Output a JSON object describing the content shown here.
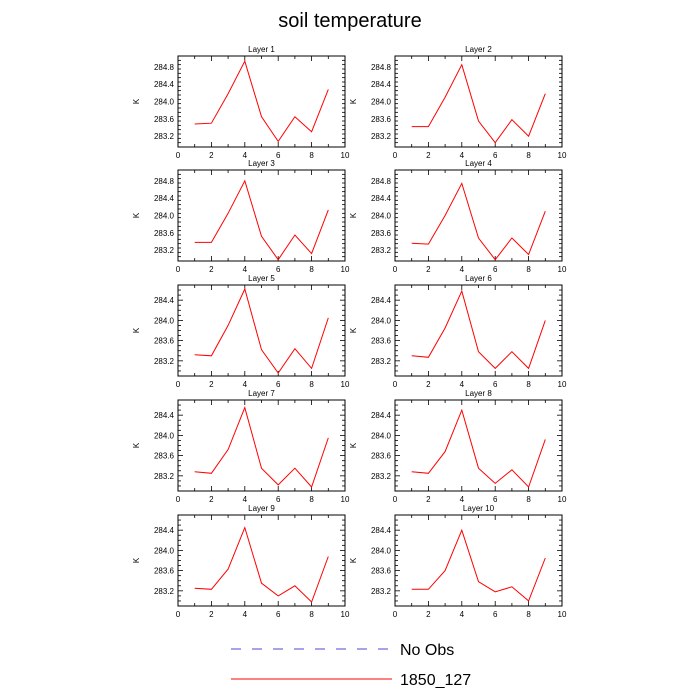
{
  "chart_data": {
    "type": "line",
    "title": "soil temperature",
    "x": [
      1,
      2,
      3,
      4,
      5,
      6,
      7,
      8,
      9
    ],
    "xlim": [
      0,
      10
    ],
    "xticks": [
      0,
      2,
      4,
      6,
      8,
      10
    ],
    "ylabel": "K",
    "legend": [
      {
        "name": "No Obs",
        "color": "#4a4acc",
        "style": "dashed"
      },
      {
        "name": "1850_127",
        "color": "#ff0000",
        "style": "solid"
      }
    ],
    "panels": [
      {
        "title": "Layer 1",
        "ylim": [
          282.95,
          285.05
        ],
        "yticks": [
          283.2,
          283.6,
          284.0,
          284.4,
          284.8
        ],
        "ytick_labels": [
          "283.2",
          "283.6",
          "284.0",
          "284.4",
          "284.8"
        ],
        "series": [
          {
            "name": "1850_127",
            "values": [
              283.48,
              283.5,
              284.18,
              284.93,
              283.65,
              283.08,
              283.65,
              283.3,
              284.28
            ]
          }
        ]
      },
      {
        "title": "Layer 2",
        "ylim": [
          282.95,
          285.05
        ],
        "yticks": [
          283.2,
          283.6,
          284.0,
          284.4,
          284.8
        ],
        "ytick_labels": [
          "283.2",
          "283.6",
          "284.0",
          "284.4",
          "284.8"
        ],
        "series": [
          {
            "name": "1850_127",
            "values": [
              283.42,
              283.42,
              284.1,
              284.85,
              283.55,
              283.05,
              283.58,
              283.2,
              284.18
            ]
          }
        ]
      },
      {
        "title": "Layer 3",
        "ylim": [
          282.95,
          285.05
        ],
        "yticks": [
          283.2,
          283.6,
          284.0,
          284.4,
          284.8
        ],
        "ytick_labels": [
          "283.2",
          "283.6",
          "284.0",
          "284.4",
          "284.8"
        ],
        "series": [
          {
            "name": "1850_127",
            "values": [
              283.38,
              283.38,
              284.05,
              284.8,
              283.52,
              282.98,
              283.55,
              283.12,
              284.13
            ]
          }
        ]
      },
      {
        "title": "Layer 4",
        "ylim": [
          282.95,
          285.05
        ],
        "yticks": [
          283.2,
          283.6,
          284.0,
          284.4,
          284.8
        ],
        "ytick_labels": [
          "283.2",
          "283.6",
          "284.0",
          "284.4",
          "284.8"
        ],
        "series": [
          {
            "name": "1850_127",
            "values": [
              283.36,
              283.34,
              284.0,
              284.74,
              283.48,
              282.98,
              283.48,
              283.1,
              284.1
            ]
          }
        ]
      },
      {
        "title": "Layer 5",
        "ylim": [
          282.9,
          284.7
        ],
        "yticks": [
          283.2,
          283.6,
          284.0,
          284.4
        ],
        "ytick_labels": [
          "283.2",
          "283.6",
          "284.0",
          "284.4"
        ],
        "series": [
          {
            "name": "1850_127",
            "values": [
              283.32,
              283.3,
              283.9,
              284.62,
              283.42,
              282.96,
              283.44,
              283.05,
              284.05
            ]
          }
        ]
      },
      {
        "title": "Layer 6",
        "ylim": [
          282.9,
          284.7
        ],
        "yticks": [
          283.2,
          283.6,
          284.0,
          284.4
        ],
        "ytick_labels": [
          "283.2",
          "283.6",
          "284.0",
          "284.4"
        ],
        "series": [
          {
            "name": "1850_127",
            "values": [
              283.3,
              283.27,
              283.85,
              284.58,
              283.38,
              283.05,
              283.38,
              283.05,
              284.0
            ]
          }
        ]
      },
      {
        "title": "Layer 7",
        "ylim": [
          282.9,
          284.7
        ],
        "yticks": [
          283.2,
          283.6,
          284.0,
          284.4
        ],
        "ytick_labels": [
          "283.2",
          "283.6",
          "284.0",
          "284.4"
        ],
        "series": [
          {
            "name": "1850_127",
            "values": [
              283.28,
              283.25,
              283.72,
              284.55,
              283.35,
              283.02,
              283.35,
              282.98,
              283.95
            ]
          }
        ]
      },
      {
        "title": "Layer 8",
        "ylim": [
          282.9,
          284.7
        ],
        "yticks": [
          283.2,
          283.6,
          284.0,
          284.4
        ],
        "ytick_labels": [
          "283.2",
          "283.6",
          "284.0",
          "284.4"
        ],
        "series": [
          {
            "name": "1850_127",
            "values": [
              283.28,
              283.25,
              283.68,
              284.5,
              283.35,
              283.05,
              283.32,
              282.98,
              283.92
            ]
          }
        ]
      },
      {
        "title": "Layer 9",
        "ylim": [
          282.9,
          284.7
        ],
        "yticks": [
          283.2,
          283.6,
          284.0,
          284.4
        ],
        "ytick_labels": [
          "283.2",
          "283.6",
          "284.0",
          "284.4"
        ],
        "series": [
          {
            "name": "1850_127",
            "values": [
              283.25,
              283.23,
              283.63,
              284.45,
              283.35,
              283.1,
              283.3,
              282.98,
              283.88
            ]
          }
        ]
      },
      {
        "title": "Layer 10",
        "ylim": [
          282.9,
          284.7
        ],
        "yticks": [
          283.2,
          283.6,
          284.0,
          284.4
        ],
        "ytick_labels": [
          "283.2",
          "283.6",
          "284.0",
          "284.4"
        ],
        "series": [
          {
            "name": "1850_127",
            "values": [
              283.23,
              283.23,
              283.6,
              284.4,
              283.38,
              283.18,
              283.28,
              283.0,
              283.85
            ]
          }
        ]
      }
    ]
  }
}
